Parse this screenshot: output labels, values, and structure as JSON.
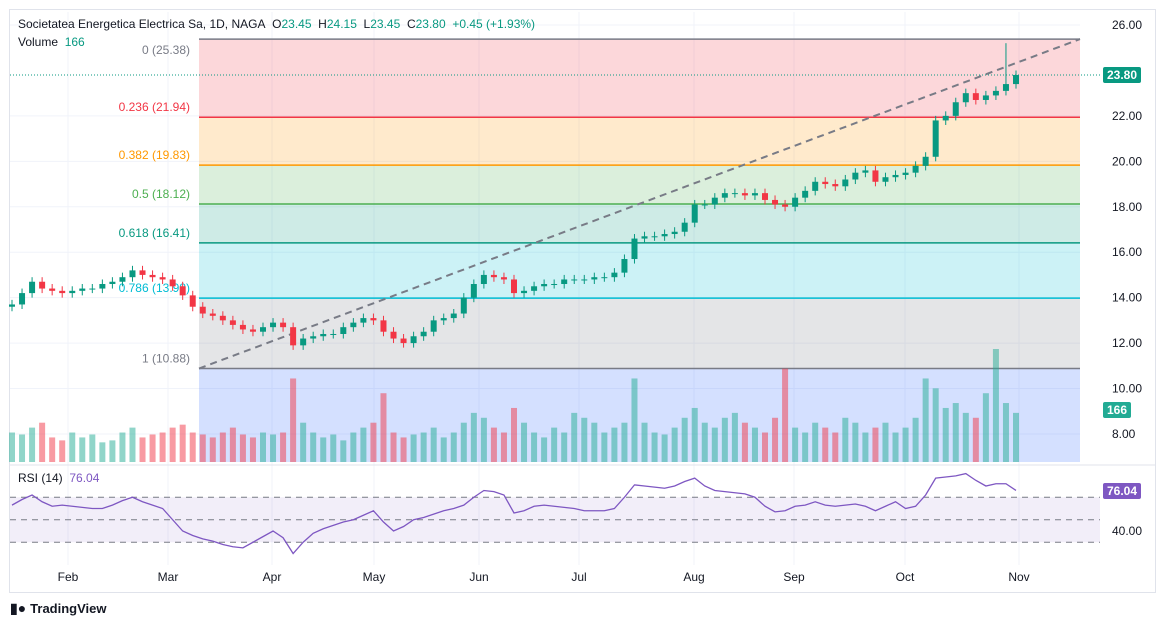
{
  "header": {
    "symbol": "Societatea Energetica Electrica Sa, 1D, NAGA",
    "o_label": "O",
    "o": "23.45",
    "h_label": "H",
    "h": "24.15",
    "l_label": "L",
    "l": "23.45",
    "c_label": "C",
    "c": "23.80",
    "change": "+0.45 (+1.93%)",
    "volume_label": "Volume",
    "volume": "166",
    "rsi_label": "RSI (14)",
    "rsi": "76.04"
  },
  "badges": {
    "last_price": "23.80",
    "last_volume": "166",
    "last_rsi": "76.04"
  },
  "brand": "TradingView",
  "colors": {
    "up": "#089981",
    "down": "#f23645",
    "rsi": "#7e57c2",
    "accent": "#089981"
  },
  "chart_data": {
    "type": "candlestick",
    "x_ticks": [
      "Feb",
      "Mar",
      "Apr",
      "May",
      "Jun",
      "Jul",
      "Aug",
      "Sep",
      "Oct",
      "Nov"
    ],
    "price_ticks": [
      "26.00",
      "22.00",
      "20.00",
      "18.00",
      "16.00",
      "14.00",
      "12.00",
      "10.00",
      "8.00"
    ],
    "price_range": [
      8,
      26
    ],
    "rsi_ticks": [
      "40.00"
    ],
    "rsi_bands": [
      70,
      50,
      30
    ],
    "fibonacci": [
      {
        "label": "0 (25.38)",
        "level": 0,
        "price": 25.38,
        "color": "#787b86",
        "fill": "#f2364533"
      },
      {
        "label": "0.236 (21.94)",
        "level": 0.236,
        "price": 21.94,
        "color": "#f23645",
        "fill": "#ff980033"
      },
      {
        "label": "0.382 (19.83)",
        "level": 0.382,
        "price": 19.83,
        "color": "#ff9800",
        "fill": "#4caf5033"
      },
      {
        "label": "0.5 (18.12)",
        "level": 0.5,
        "price": 18.12,
        "color": "#4caf50",
        "fill": "#08998133"
      },
      {
        "label": "0.618 (16.41)",
        "level": 0.618,
        "price": 16.41,
        "color": "#089981",
        "fill": "#00bcd433"
      },
      {
        "label": "0.786 (13.98)",
        "level": 0.786,
        "price": 13.98,
        "color": "#00bcd4",
        "fill": "#787b8633"
      },
      {
        "label": "1 (10.88)",
        "level": 1,
        "price": 10.88,
        "color": "#787b86",
        "fill": "#2962ff33"
      }
    ],
    "closes": [
      13.7,
      14.2,
      14.7,
      14.4,
      14.3,
      14.2,
      14.3,
      14.4,
      14.4,
      14.6,
      14.7,
      14.9,
      15.2,
      15.0,
      14.9,
      14.8,
      14.5,
      14.1,
      13.6,
      13.3,
      13.2,
      13.0,
      12.8,
      12.6,
      12.5,
      12.7,
      12.9,
      12.7,
      11.9,
      12.2,
      12.3,
      12.4,
      12.4,
      12.7,
      12.9,
      13.1,
      13.0,
      12.5,
      12.2,
      12.0,
      12.3,
      12.5,
      13.0,
      13.1,
      13.3,
      14.0,
      14.6,
      15.0,
      14.9,
      14.8,
      14.2,
      14.3,
      14.5,
      14.6,
      14.6,
      14.8,
      14.8,
      14.8,
      14.9,
      14.9,
      15.1,
      15.7,
      16.6,
      16.7,
      16.7,
      16.8,
      16.9,
      17.3,
      18.1,
      18.1,
      18.4,
      18.6,
      18.6,
      18.5,
      18.6,
      18.3,
      18.1,
      18.0,
      18.4,
      18.7,
      19.1,
      19.0,
      18.9,
      19.2,
      19.5,
      19.6,
      19.1,
      19.3,
      19.4,
      19.5,
      19.8,
      20.2,
      21.8,
      22.0,
      22.6,
      23.0,
      22.7,
      22.9,
      23.1,
      23.4,
      23.8
    ],
    "volume": [
      30,
      28,
      35,
      40,
      25,
      22,
      30,
      25,
      28,
      20,
      22,
      30,
      35,
      25,
      28,
      30,
      35,
      38,
      30,
      28,
      25,
      30,
      35,
      28,
      25,
      30,
      28,
      30,
      85,
      40,
      30,
      25,
      28,
      22,
      30,
      35,
      40,
      70,
      30,
      25,
      28,
      30,
      35,
      25,
      30,
      40,
      50,
      45,
      35,
      30,
      55,
      40,
      30,
      25,
      35,
      30,
      50,
      45,
      40,
      30,
      35,
      40,
      85,
      40,
      30,
      28,
      35,
      45,
      55,
      40,
      35,
      45,
      50,
      40,
      35,
      30,
      45,
      95,
      35,
      30,
      40,
      35,
      30,
      45,
      40,
      30,
      35,
      40,
      30,
      35,
      45,
      85,
      75,
      55,
      60,
      50,
      45,
      70,
      115,
      60,
      50
    ],
    "rsi": [
      63,
      68,
      72,
      66,
      62,
      63,
      62,
      61,
      60,
      60,
      63,
      67,
      70,
      66,
      63,
      60,
      50,
      40,
      36,
      33,
      31,
      28,
      26,
      25,
      30,
      35,
      40,
      34,
      20,
      30,
      38,
      42,
      45,
      48,
      50,
      54,
      58,
      48,
      40,
      44,
      50,
      52,
      55,
      58,
      60,
      63,
      70,
      76,
      75,
      72,
      56,
      58,
      62,
      63,
      62,
      61,
      60,
      58,
      58,
      58,
      60,
      70,
      81,
      80,
      79,
      78,
      80,
      84,
      87,
      80,
      76,
      75,
      74,
      73,
      70,
      62,
      57,
      58,
      62,
      63,
      66,
      63,
      62,
      63,
      64,
      62,
      58,
      62,
      66,
      60,
      62,
      72,
      87,
      88,
      89,
      91,
      85,
      80,
      82,
      82,
      76.04
    ]
  }
}
